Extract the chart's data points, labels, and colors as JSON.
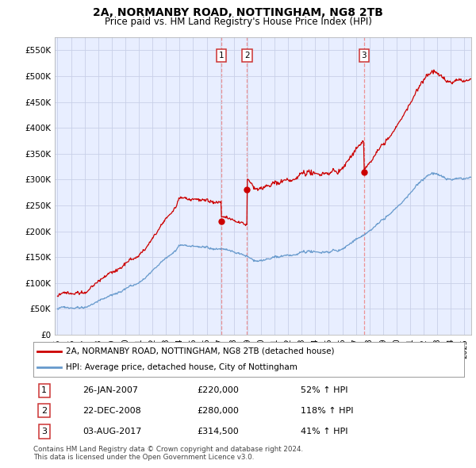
{
  "title": "2A, NORMANBY ROAD, NOTTINGHAM, NG8 2TB",
  "subtitle": "Price paid vs. HM Land Registry's House Price Index (HPI)",
  "ylabel_ticks": [
    "£0",
    "£50K",
    "£100K",
    "£150K",
    "£200K",
    "£250K",
    "£300K",
    "£350K",
    "£400K",
    "£450K",
    "£500K",
    "£550K"
  ],
  "ytick_values": [
    0,
    50000,
    100000,
    150000,
    200000,
    250000,
    300000,
    350000,
    400000,
    450000,
    500000,
    550000
  ],
  "sale_dates": [
    2007.07,
    2008.98,
    2017.59
  ],
  "sale_prices": [
    220000,
    280000,
    314500
  ],
  "sale_labels": [
    "1",
    "2",
    "3"
  ],
  "legend_line1": "2A, NORMANBY ROAD, NOTTINGHAM, NG8 2TB (detached house)",
  "legend_line2": "HPI: Average price, detached house, City of Nottingham",
  "table_data": [
    [
      "1",
      "26-JAN-2007",
      "£220,000",
      "52% ↑ HPI"
    ],
    [
      "2",
      "22-DEC-2008",
      "£280,000",
      "118% ↑ HPI"
    ],
    [
      "3",
      "03-AUG-2017",
      "£314,500",
      "41% ↑ HPI"
    ]
  ],
  "footer": "Contains HM Land Registry data © Crown copyright and database right 2024.\nThis data is licensed under the Open Government Licence v3.0.",
  "line_color_red": "#cc0000",
  "line_color_blue": "#6699cc",
  "bg_color": "#e8eeff",
  "grid_color": "#c8d0e8",
  "xmin": 1994.8,
  "xmax": 2025.5,
  "ymin": 0,
  "ymax": 575000
}
